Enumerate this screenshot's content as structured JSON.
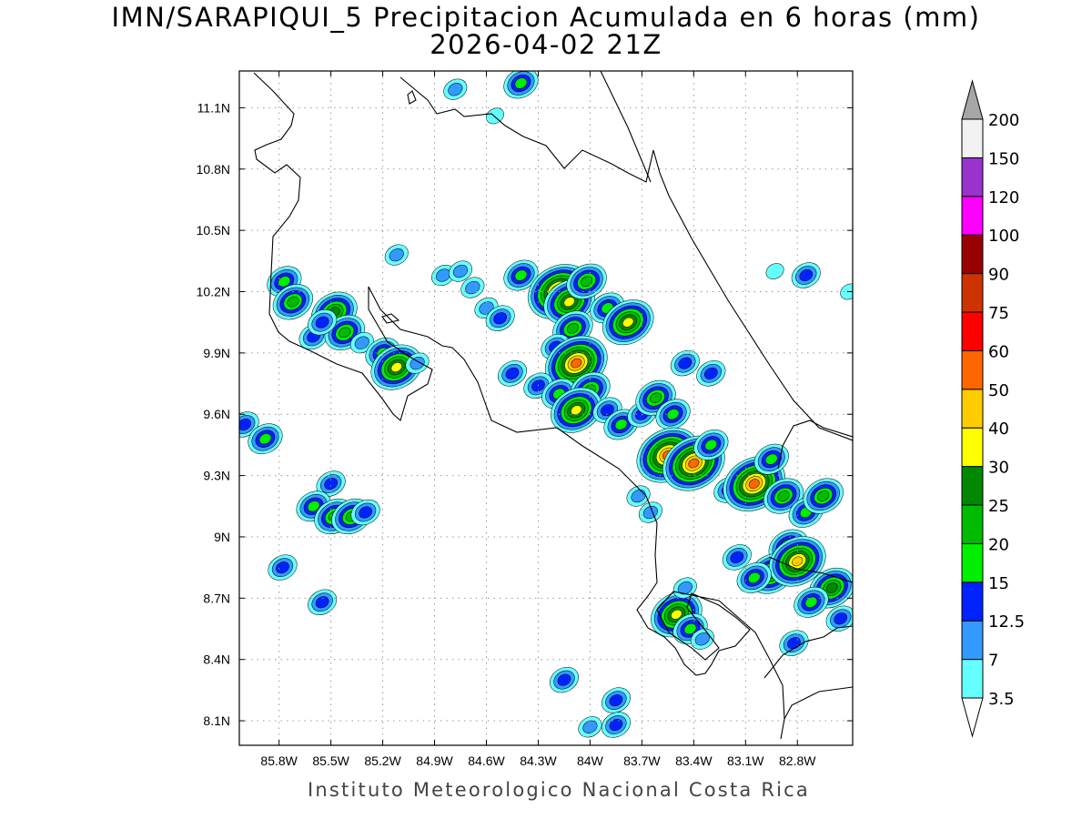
{
  "title": {
    "line1": "IMN/SARAPIQUI_5 Precipitacion Acumulada en 6 horas (mm)",
    "line2": "2026-04-02 21Z"
  },
  "footer": "Instituto Meteorologico Nacional Costa Rica",
  "map": {
    "lon_range": [
      -86.03,
      -82.48
    ],
    "lat_range": [
      7.98,
      11.28
    ],
    "lon_ticks": [
      {
        "value": -85.8,
        "label": "85.8W"
      },
      {
        "value": -85.5,
        "label": "85.5W"
      },
      {
        "value": -85.2,
        "label": "85.2W"
      },
      {
        "value": -84.9,
        "label": "84.9W"
      },
      {
        "value": -84.6,
        "label": "84.6W"
      },
      {
        "value": -84.3,
        "label": "84.3W"
      },
      {
        "value": -84.0,
        "label": "84W"
      },
      {
        "value": -83.7,
        "label": "83.7W"
      },
      {
        "value": -83.4,
        "label": "83.4W"
      },
      {
        "value": -83.1,
        "label": "83.1W"
      },
      {
        "value": -82.8,
        "label": "82.8W"
      }
    ],
    "lat_ticks": [
      {
        "value": 11.1,
        "label": "11.1N"
      },
      {
        "value": 10.8,
        "label": "10.8N"
      },
      {
        "value": 10.5,
        "label": "10.5N"
      },
      {
        "value": 10.2,
        "label": "10.2N"
      },
      {
        "value": 9.9,
        "label": "9.9N"
      },
      {
        "value": 9.6,
        "label": "9.6N"
      },
      {
        "value": 9.3,
        "label": "9.3N"
      },
      {
        "value": 9.0,
        "label": "9N"
      },
      {
        "value": 8.7,
        "label": "8.7N"
      },
      {
        "value": 8.4,
        "label": "8.4N"
      },
      {
        "value": 8.1,
        "label": "8.1N"
      }
    ],
    "grid": true
  },
  "colorbar": {
    "labels": [
      "3.5",
      "7",
      "12.5",
      "15",
      "20",
      "25",
      "30",
      "40",
      "50",
      "60",
      "75",
      "90",
      "100",
      "120",
      "150",
      "200"
    ],
    "colors": [
      "#ffffff",
      "#66ffff",
      "#3399ff",
      "#0022ff",
      "#00ee00",
      "#00bb00",
      "#008800",
      "#ffff00",
      "#ffcc00",
      "#ff6600",
      "#ff0000",
      "#cc3300",
      "#990000",
      "#ff00ff",
      "#9933cc",
      "#f2f2f2",
      "#a6a6a6"
    ]
  },
  "precip_cells": [
    {
      "lon": -85.77,
      "lat": 10.25,
      "level": 4
    },
    {
      "lon": -85.72,
      "lat": 10.15,
      "level": 5
    },
    {
      "lon": -85.6,
      "lat": 9.98,
      "level": 3
    },
    {
      "lon": -85.48,
      "lat": 10.1,
      "level": 6
    },
    {
      "lon": -85.42,
      "lat": 10.0,
      "level": 5
    },
    {
      "lon": -85.55,
      "lat": 10.05,
      "level": 3
    },
    {
      "lon": -85.32,
      "lat": 9.95,
      "level": 2
    },
    {
      "lon": -85.2,
      "lat": 9.9,
      "level": 4
    },
    {
      "lon": -85.12,
      "lat": 9.83,
      "level": 7
    },
    {
      "lon": -85.0,
      "lat": 9.85,
      "level": 2
    },
    {
      "lon": -85.12,
      "lat": 10.38,
      "level": 2
    },
    {
      "lon": -84.85,
      "lat": 10.28,
      "level": 2
    },
    {
      "lon": -84.75,
      "lat": 10.3,
      "level": 2
    },
    {
      "lon": -84.68,
      "lat": 10.22,
      "level": 2
    },
    {
      "lon": -84.6,
      "lat": 10.12,
      "level": 2
    },
    {
      "lon": -84.52,
      "lat": 10.07,
      "level": 3
    },
    {
      "lon": -84.4,
      "lat": 10.28,
      "level": 4
    },
    {
      "lon": -84.18,
      "lat": 10.2,
      "level": 9
    },
    {
      "lon": -84.12,
      "lat": 10.15,
      "level": 7
    },
    {
      "lon": -84.02,
      "lat": 10.25,
      "level": 5
    },
    {
      "lon": -83.9,
      "lat": 10.12,
      "level": 4
    },
    {
      "lon": -83.78,
      "lat": 10.05,
      "level": 7
    },
    {
      "lon": -84.1,
      "lat": 10.02,
      "level": 5
    },
    {
      "lon": -84.2,
      "lat": 9.93,
      "level": 3
    },
    {
      "lon": -84.08,
      "lat": 9.85,
      "level": 9
    },
    {
      "lon": -84.45,
      "lat": 9.8,
      "level": 3
    },
    {
      "lon": -84.3,
      "lat": 9.74,
      "level": 3
    },
    {
      "lon": -84.18,
      "lat": 9.7,
      "level": 4
    },
    {
      "lon": -84.0,
      "lat": 9.72,
      "level": 5
    },
    {
      "lon": -84.08,
      "lat": 9.62,
      "level": 7
    },
    {
      "lon": -83.9,
      "lat": 9.62,
      "level": 3
    },
    {
      "lon": -83.82,
      "lat": 9.55,
      "level": 4
    },
    {
      "lon": -83.7,
      "lat": 9.6,
      "level": 3
    },
    {
      "lon": -83.62,
      "lat": 9.68,
      "level": 5
    },
    {
      "lon": -83.52,
      "lat": 9.6,
      "level": 4
    },
    {
      "lon": -83.55,
      "lat": 9.4,
      "level": 9
    },
    {
      "lon": -83.4,
      "lat": 9.36,
      "level": 9
    },
    {
      "lon": -83.3,
      "lat": 9.45,
      "level": 4
    },
    {
      "lon": -83.45,
      "lat": 9.85,
      "level": 3
    },
    {
      "lon": -83.3,
      "lat": 9.8,
      "level": 3
    },
    {
      "lon": -83.2,
      "lat": 9.23,
      "level": 3
    },
    {
      "lon": -83.05,
      "lat": 9.26,
      "level": 9
    },
    {
      "lon": -82.95,
      "lat": 9.38,
      "level": 4
    },
    {
      "lon": -82.88,
      "lat": 9.2,
      "level": 5
    },
    {
      "lon": -82.75,
      "lat": 9.12,
      "level": 4
    },
    {
      "lon": -82.65,
      "lat": 9.2,
      "level": 5
    },
    {
      "lon": -82.85,
      "lat": 8.95,
      "level": 5
    },
    {
      "lon": -82.95,
      "lat": 8.82,
      "level": 6
    },
    {
      "lon": -82.8,
      "lat": 8.88,
      "level": 8
    },
    {
      "lon": -82.6,
      "lat": 8.75,
      "level": 6
    },
    {
      "lon": -82.72,
      "lat": 8.68,
      "level": 4
    },
    {
      "lon": -82.55,
      "lat": 8.6,
      "level": 3
    },
    {
      "lon": -83.05,
      "lat": 8.8,
      "level": 4
    },
    {
      "lon": -83.15,
      "lat": 8.9,
      "level": 3
    },
    {
      "lon": -82.82,
      "lat": 8.48,
      "level": 3
    },
    {
      "lon": -83.5,
      "lat": 8.62,
      "level": 7
    },
    {
      "lon": -83.42,
      "lat": 8.55,
      "level": 4
    },
    {
      "lon": -83.35,
      "lat": 8.5,
      "level": 2
    },
    {
      "lon": -83.45,
      "lat": 8.75,
      "level": 2
    },
    {
      "lon": -83.72,
      "lat": 9.2,
      "level": 2
    },
    {
      "lon": -83.65,
      "lat": 9.12,
      "level": 2
    },
    {
      "lon": -84.15,
      "lat": 8.3,
      "level": 3
    },
    {
      "lon": -83.85,
      "lat": 8.2,
      "level": 3
    },
    {
      "lon": -83.85,
      "lat": 8.08,
      "level": 3
    },
    {
      "lon": -84.0,
      "lat": 8.07,
      "level": 2
    },
    {
      "lon": -85.5,
      "lat": 9.26,
      "level": 3
    },
    {
      "lon": -85.6,
      "lat": 9.15,
      "level": 4
    },
    {
      "lon": -85.48,
      "lat": 9.1,
      "level": 5
    },
    {
      "lon": -85.38,
      "lat": 9.1,
      "level": 5
    },
    {
      "lon": -85.3,
      "lat": 9.12,
      "level": 3
    },
    {
      "lon": -85.78,
      "lat": 8.85,
      "level": 3
    },
    {
      "lon": -85.55,
      "lat": 8.68,
      "level": 3
    },
    {
      "lon": -86.0,
      "lat": 9.55,
      "level": 3
    },
    {
      "lon": -85.88,
      "lat": 9.48,
      "level": 4
    },
    {
      "lon": -84.4,
      "lat": 11.22,
      "level": 4
    },
    {
      "lon": -84.78,
      "lat": 11.19,
      "level": 2
    },
    {
      "lon": -84.55,
      "lat": 11.06,
      "level": 1
    },
    {
      "lon": -82.75,
      "lat": 10.28,
      "level": 3
    },
    {
      "lon": -82.5,
      "lat": 10.2,
      "level": 1
    },
    {
      "lon": -82.93,
      "lat": 10.3,
      "level": 1
    }
  ]
}
